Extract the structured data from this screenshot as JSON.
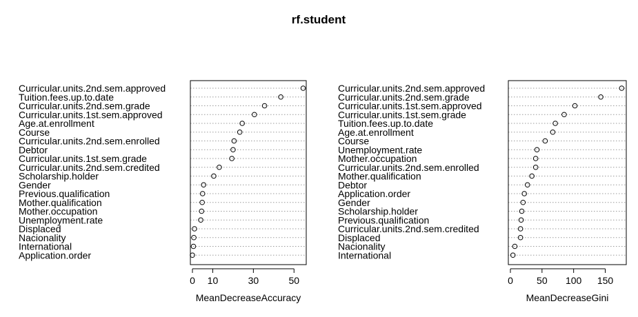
{
  "chart_data": [
    {
      "type": "dotchart",
      "title": "rf.student",
      "xlabel": "MeanDecreaseAccuracy",
      "xlim": [
        0,
        55
      ],
      "xticks": [
        0,
        10,
        30,
        50
      ],
      "grid": "dotted horizontal",
      "labels": [
        "Curricular.units.2nd.sem.approved",
        "Tuition.fees.up.to.date",
        "Curricular.units.2nd.sem.grade",
        "Curricular.units.1st.sem.approved",
        "Age.at.enrollment",
        "Course",
        "Curricular.units.2nd.sem.enrolled",
        "Debtor",
        "Curricular.units.1st.sem.grade",
        "Curricular.units.2nd.sem.credited",
        "Scholarship.holder",
        "Gender",
        "Previous.qualification",
        "Mother.qualification",
        "Mother.occupation",
        "Unemployment.rate",
        "Displaced",
        "Nacionality",
        "International",
        "Application.order"
      ],
      "values": [
        54.5,
        43.5,
        35.5,
        30.5,
        24.5,
        23.3,
        20.5,
        20.0,
        19.4,
        13.2,
        10.5,
        5.5,
        5.0,
        4.8,
        4.5,
        4.1,
        1.0,
        0.7,
        0.5,
        0.0
      ]
    },
    {
      "type": "dotchart",
      "title": "",
      "xlabel": "MeanDecreaseGini",
      "xlim": [
        0,
        180
      ],
      "xticks": [
        0,
        50,
        100,
        150
      ],
      "grid": "dotted horizontal",
      "labels": [
        "Curricular.units.2nd.sem.approved",
        "Curricular.units.2nd.sem.grade",
        "Curricular.units.1st.sem.approved",
        "Curricular.units.1st.sem.grade",
        "Tuition.fees.up.to.date",
        "Age.at.enrollment",
        "Course",
        "Unemployment.rate",
        "Mother.occupation",
        "Curricular.units.2nd.sem.enrolled",
        "Mother.qualification",
        "Debtor",
        "Application.order",
        "Gender",
        "Scholarship.holder",
        "Previous.qualification",
        "Curricular.units.2nd.sem.credited",
        "Displaced",
        "Nacionality",
        "International"
      ],
      "values": [
        176,
        143,
        102,
        85,
        71,
        67,
        55,
        42,
        40,
        40,
        34,
        27,
        22,
        20,
        18,
        17,
        16,
        16,
        7,
        4
      ]
    }
  ]
}
